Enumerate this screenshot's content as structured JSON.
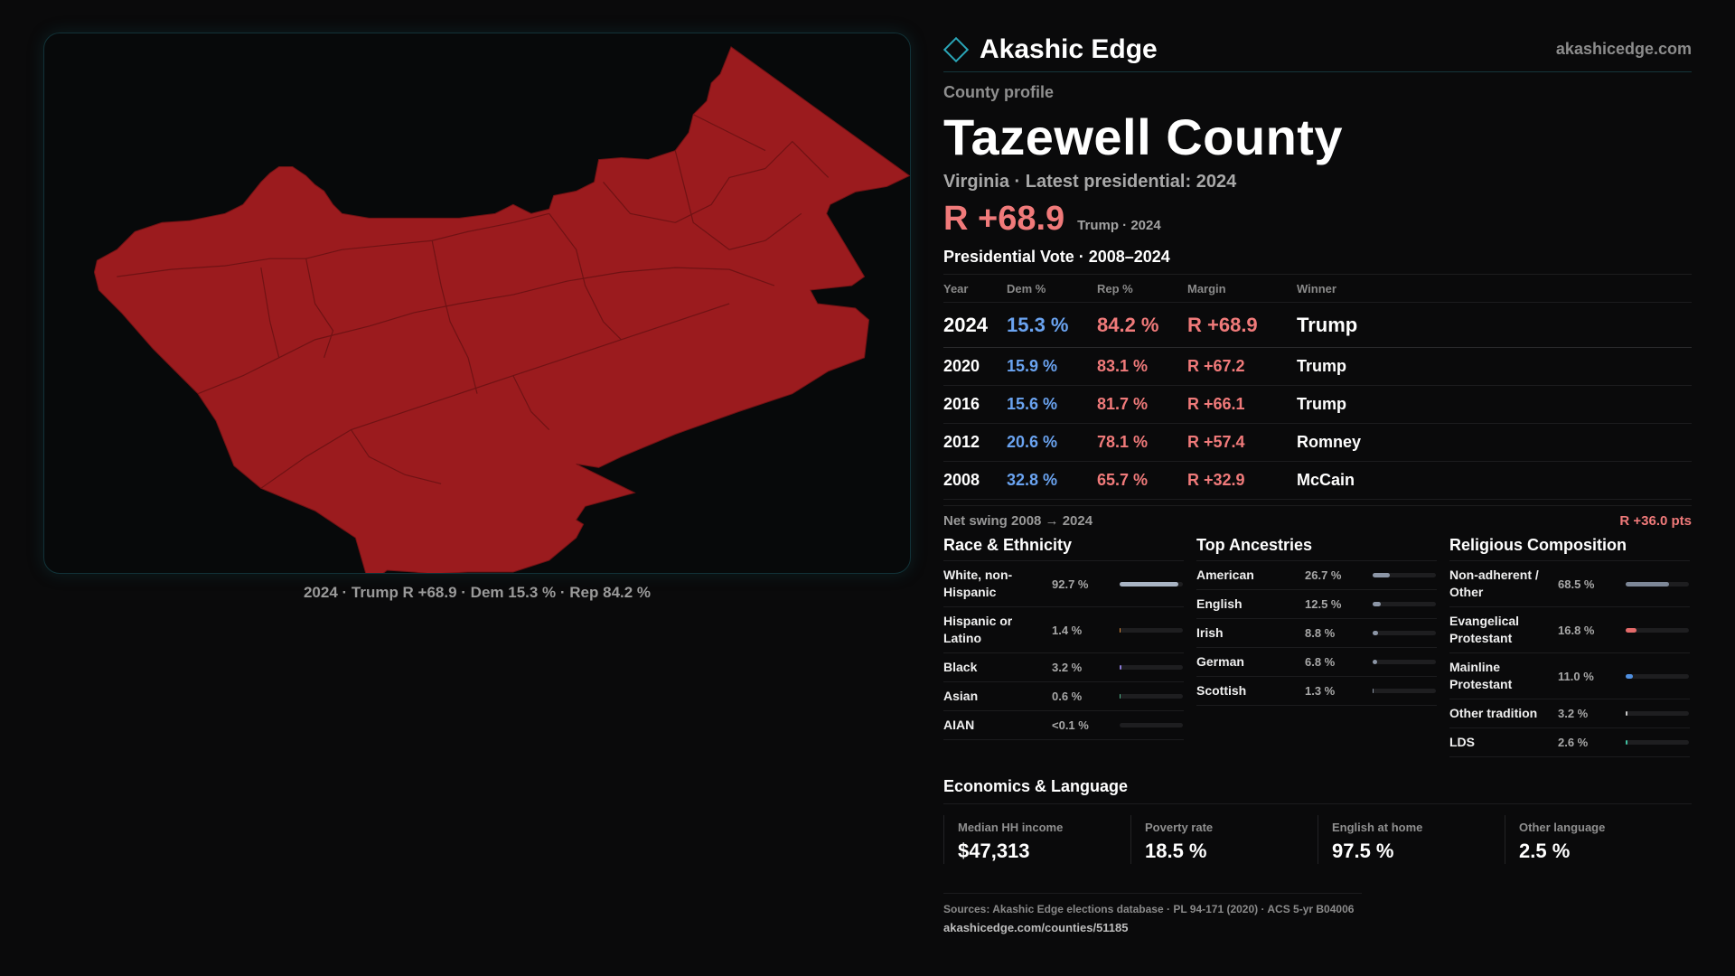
{
  "map": {
    "caption": "2024 · Trump R +68.9 · Dem 15.3 % · Rep 84.2 %",
    "fill_color": "#9b1b1e",
    "border_color": "#701214"
  },
  "header": {
    "brand": "Akashic Edge",
    "site": "akashicedge.com"
  },
  "profile": {
    "eyebrow": "County profile",
    "county": "Tazewell County",
    "subtitle": "Virginia · Latest presidential: 2024",
    "margin": "R +68.9",
    "margin_note": "Trump · 2024"
  },
  "presidential": {
    "title": "Presidential Vote · 2008–2024",
    "columns": [
      "Year",
      "Dem %",
      "Rep %",
      "Margin",
      "Winner"
    ],
    "rows": [
      {
        "year": "2024",
        "dem": "15.3 %",
        "rep": "84.2 %",
        "margin": "R +68.9",
        "winner": "Trump"
      },
      {
        "year": "2020",
        "dem": "15.9 %",
        "rep": "83.1 %",
        "margin": "R +67.2",
        "winner": "Trump"
      },
      {
        "year": "2016",
        "dem": "15.6 %",
        "rep": "81.7 %",
        "margin": "R +66.1",
        "winner": "Trump"
      },
      {
        "year": "2012",
        "dem": "20.6 %",
        "rep": "78.1 %",
        "margin": "R +57.4",
        "winner": "Romney"
      },
      {
        "year": "2008",
        "dem": "32.8 %",
        "rep": "65.7 %",
        "margin": "R +32.9",
        "winner": "McCain"
      }
    ],
    "swing_label": "Net swing 2008 → 2024",
    "swing_value": "R +36.0 pts"
  },
  "race": {
    "title": "Race & Ethnicity",
    "items": [
      {
        "name": "White, non-Hispanic",
        "value": "92.7 %",
        "share": 0.927,
        "color": "#a9b4c4",
        "tall": true
      },
      {
        "name": "Hispanic or Latino",
        "value": "1.4 %",
        "share": 0.014,
        "color": "#d98a3a",
        "tall": true
      },
      {
        "name": "Black",
        "value": "3.2 %",
        "share": 0.032,
        "color": "#8a7ad6",
        "tall": false
      },
      {
        "name": "Asian",
        "value": "0.6 %",
        "share": 0.006,
        "color": "#4fb58a",
        "tall": false
      },
      {
        "name": "AIAN",
        "value": "<0.1 %",
        "share": 0.0,
        "color": "#888888",
        "tall": false
      }
    ]
  },
  "ancestry": {
    "title": "Top Ancestries",
    "items": [
      {
        "name": "American",
        "value": "26.7 %",
        "share": 0.267,
        "color": "#8c96a6"
      },
      {
        "name": "English",
        "value": "12.5 %",
        "share": 0.125,
        "color": "#8c96a6"
      },
      {
        "name": "Irish",
        "value": "8.8 %",
        "share": 0.088,
        "color": "#8c96a6"
      },
      {
        "name": "German",
        "value": "6.8 %",
        "share": 0.068,
        "color": "#8c96a6"
      },
      {
        "name": "Scottish",
        "value": "1.3 %",
        "share": 0.013,
        "color": "#8c96a6"
      }
    ]
  },
  "religion": {
    "title": "Religious Composition",
    "items": [
      {
        "name": "Non-adherent / Other",
        "value": "68.5 %",
        "share": 0.685,
        "color": "#7d8797",
        "tall": true
      },
      {
        "name": "Evangelical Protestant",
        "value": "16.8 %",
        "share": 0.168,
        "color": "#e46a6a",
        "tall": true
      },
      {
        "name": "Mainline Protestant",
        "value": "11.0 %",
        "share": 0.11,
        "color": "#4f8fe0",
        "tall": true
      },
      {
        "name": "Other tradition",
        "value": "3.2 %",
        "share": 0.032,
        "color": "#c9c9c9",
        "tall": false
      },
      {
        "name": "LDS",
        "value": "2.6 %",
        "share": 0.026,
        "color": "#3fbfa0",
        "tall": false
      }
    ]
  },
  "economics": {
    "title": "Economics & Language",
    "items": [
      {
        "label": "Median HH income",
        "value": "$47,313"
      },
      {
        "label": "Poverty rate",
        "value": "18.5 %"
      },
      {
        "label": "English at home",
        "value": "97.5 %"
      },
      {
        "label": "Other language",
        "value": "2.5 %"
      }
    ]
  },
  "sources": {
    "line": "Sources: Akashic Edge elections database · PL 94-171 (2020) · ACS 5-yr B04006",
    "url": "akashicedge.com/counties/51185"
  }
}
